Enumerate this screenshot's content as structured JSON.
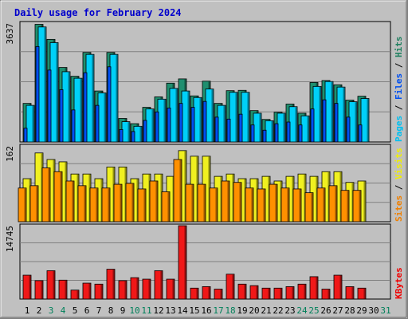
{
  "chart_data": {
    "type": "bar",
    "title": "Daily usage for February 2024",
    "categories": [
      "1",
      "2",
      "3",
      "4",
      "5",
      "6",
      "7",
      "8",
      "9",
      "10",
      "11",
      "12",
      "13",
      "14",
      "15",
      "16",
      "17",
      "18",
      "19",
      "20",
      "21",
      "22",
      "23",
      "24",
      "25",
      "26",
      "27",
      "28",
      "29",
      "30",
      "31"
    ],
    "weekend_days": [
      3,
      4,
      10,
      11,
      17,
      18,
      24,
      25,
      31
    ],
    "panels": [
      {
        "ymax_label": "3637",
        "ymax": 3637,
        "legend": [
          {
            "label": "Pages",
            "color": "#00c0f0"
          },
          {
            "label": "Files",
            "color": "#0050f0"
          },
          {
            "label": "Hits",
            "color": "#208060"
          }
        ],
        "series": [
          {
            "name": "Hits",
            "color": "#1f8f6f",
            "values": [
              1180,
              3600,
              3140,
              2280,
              2010,
              2740,
              1560,
              2740,
              720,
              560,
              1060,
              1380,
              1800,
              1930,
              1410,
              1860,
              1180,
              1570,
              1580,
              960,
              690,
              910,
              1160,
              880,
              1820,
              1880,
              1750,
              1280,
              1400,
              null,
              null
            ]
          },
          {
            "name": "Pages",
            "color": "#00d0f8",
            "values": [
              1120,
              3520,
              3040,
              2150,
              1950,
              2680,
              1500,
              2680,
              620,
              480,
              1010,
              1310,
              1640,
              1560,
              1360,
              1620,
              1120,
              1520,
              1520,
              880,
              650,
              880,
              1080,
              800,
              1700,
              1850,
              1680,
              1230,
              1330,
              null,
              null
            ]
          },
          {
            "name": "Files",
            "color": "#0050f0",
            "values": [
              420,
              2920,
              2200,
              1600,
              980,
              2120,
              1120,
              2300,
              380,
              320,
              660,
              920,
              1040,
              1180,
              1060,
              1240,
              760,
              700,
              850,
              520,
              360,
              560,
              610,
              520,
              1010,
              1290,
              1180,
              760,
              520,
              null,
              null
            ]
          }
        ]
      },
      {
        "ymax_label": "162",
        "ymax": 162,
        "legend": [
          {
            "label": "Sites",
            "color": "#f08000"
          },
          {
            "label": "Visits",
            "color": "#f0f000"
          }
        ],
        "series": [
          {
            "name": "Visits",
            "color": "#f0f020",
            "values": [
              92,
              147,
              133,
              128,
              102,
              102,
              92,
              117,
              117,
              92,
              102,
              102,
              97,
              152,
              140,
              140,
              97,
              102,
              92,
              92,
              97,
              87,
              97,
              102,
              97,
              107,
              107,
              84,
              87,
              null,
              null
            ]
          },
          {
            "name": "Sites",
            "color": "#ff9000",
            "values": [
              72,
              77,
              115,
              107,
              87,
              77,
              72,
              72,
              80,
              82,
              70,
              87,
              64,
              133,
              80,
              80,
              72,
              87,
              84,
              72,
              70,
              80,
              72,
              70,
              62,
              72,
              77,
              67,
              67,
              null,
              null
            ]
          }
        ]
      },
      {
        "ymax_label": "14745",
        "ymax": 14745,
        "legend": [
          {
            "label": "KBytes",
            "color": "#f00000"
          }
        ],
        "series": [
          {
            "name": "KBytes",
            "color": "#f01818",
            "values": [
              4800,
              3700,
              5700,
              3800,
              1800,
              3200,
              3000,
              6000,
              3700,
              4300,
              4000,
              5700,
              4000,
              14745,
              2200,
              2500,
              2000,
              5000,
              3000,
              2700,
              2200,
              2200,
              2500,
              3000,
              4500,
              2000,
              4800,
              2500,
              2200,
              null,
              null
            ]
          }
        ]
      }
    ]
  }
}
